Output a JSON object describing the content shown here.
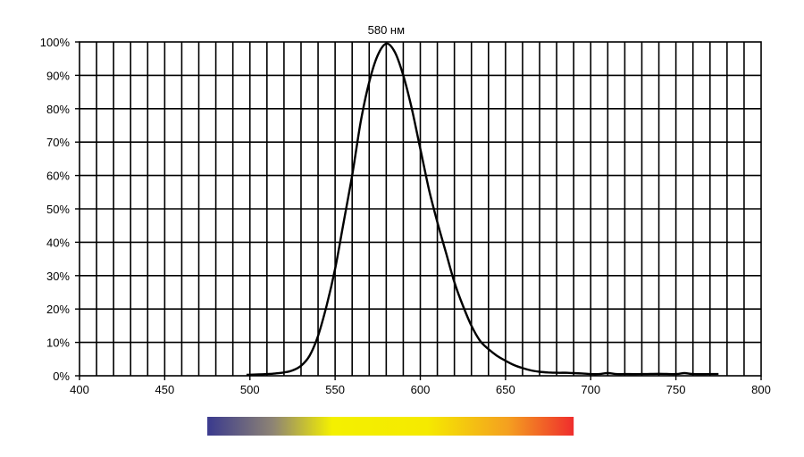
{
  "chart_data": {
    "type": "line",
    "title": "",
    "xlabel": "",
    "ylabel": "",
    "xlim": [
      400,
      800
    ],
    "ylim": [
      0,
      100
    ],
    "x_ticks": [
      400,
      450,
      500,
      550,
      600,
      650,
      700,
      750,
      800
    ],
    "x_tick_labels": [
      "400",
      "450",
      "500",
      "550",
      "600",
      "650",
      "700",
      "750",
      "800"
    ],
    "y_ticks": [
      0,
      10,
      20,
      30,
      40,
      50,
      60,
      70,
      80,
      90,
      100
    ],
    "y_tick_labels": [
      "0%",
      "10%",
      "20%",
      "30%",
      "40%",
      "50%",
      "60%",
      "70%",
      "80%",
      "90%",
      "100%"
    ],
    "grid": true,
    "x_grid_step": 10,
    "legend": "none",
    "annotations": [
      {
        "text": "580 нм",
        "x": 580,
        "y": 100
      }
    ],
    "series": [
      {
        "color": "#000000",
        "x": [
          498,
          505,
          510,
          515,
          520,
          525,
          530,
          535,
          540,
          545,
          550,
          555,
          560,
          565,
          570,
          575,
          580,
          585,
          590,
          595,
          600,
          605,
          610,
          615,
          620,
          625,
          630,
          635,
          640,
          645,
          650,
          655,
          660,
          665,
          670,
          675,
          680,
          685,
          690,
          695,
          700,
          705,
          710,
          715,
          720,
          730,
          740,
          750,
          755,
          760,
          770,
          775
        ],
        "y": [
          0.3,
          0.4,
          0.5,
          0.7,
          1.0,
          1.6,
          3.0,
          6.0,
          12.0,
          21.0,
          32.0,
          46.0,
          60.0,
          76.0,
          88.0,
          96.0,
          99.5,
          97.0,
          90.0,
          80.0,
          68.0,
          56.0,
          46.0,
          37.0,
          28.0,
          21.0,
          15.0,
          10.5,
          8.0,
          6.0,
          4.5,
          3.2,
          2.3,
          1.6,
          1.2,
          1.0,
          0.9,
          0.9,
          0.8,
          0.7,
          0.5,
          0.5,
          0.8,
          0.5,
          0.5,
          0.5,
          0.6,
          0.5,
          0.8,
          0.5,
          0.5,
          0.5
        ]
      }
    ],
    "spectrum_bar": {
      "x_range": [
        475,
        690
      ],
      "colors": [
        "#3a3a8e",
        "#8e8474",
        "#f4f000",
        "#f5ea00",
        "#f4a020",
        "#ef2d2d"
      ]
    }
  }
}
